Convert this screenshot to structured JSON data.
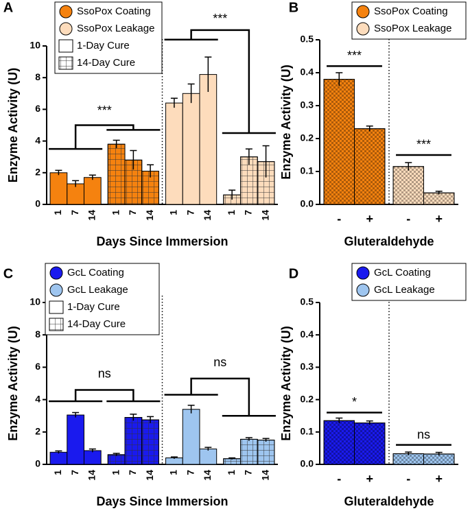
{
  "chart_data": [
    {
      "type": "bar",
      "panel": "A",
      "ylabel": "Enzyme Activity (U)",
      "xlabel": "Days Since Immersion",
      "categories": [
        "1",
        "7",
        "14"
      ],
      "ylim": [
        0,
        10
      ],
      "yticks": [
        0,
        2,
        4,
        6,
        8,
        10
      ],
      "groups": [
        {
          "color": "#f5820f",
          "pattern": "none",
          "values": [
            2.0,
            1.3,
            1.7
          ],
          "errors": [
            0.15,
            0.2,
            0.15
          ]
        },
        {
          "color": "#f5820f",
          "pattern": "grid",
          "values": [
            3.8,
            2.8,
            2.1
          ],
          "errors": [
            0.25,
            0.6,
            0.4
          ]
        },
        {
          "color": "#fddcbc",
          "pattern": "none",
          "values": [
            6.4,
            7.0,
            8.2
          ],
          "errors": [
            0.3,
            0.6,
            1.1
          ]
        },
        {
          "color": "#fddcbc",
          "pattern": "grid",
          "values": [
            0.6,
            3.0,
            2.7
          ],
          "errors": [
            0.3,
            0.5,
            1.0
          ]
        }
      ],
      "legend": [
        {
          "label": "SsoPox Coating",
          "marker": "circle",
          "color": "#f5820f",
          "pattern": "none"
        },
        {
          "label": "SsoPox Leakage",
          "marker": "circle",
          "color": "#fddcbc",
          "pattern": "none"
        },
        {
          "label": "1-Day Cure",
          "marker": "square",
          "color": "#ffffff",
          "pattern": "none"
        },
        {
          "label": "14-Day Cure",
          "marker": "square",
          "color": "#ffffff",
          "pattern": "grid"
        }
      ],
      "annotations": [
        "***",
        "***"
      ]
    },
    {
      "type": "bar",
      "panel": "B",
      "ylabel": "Enzyme Activity (U)",
      "xlabel": "Gluteraldehyde",
      "categories": [
        "-",
        "+"
      ],
      "ylim": [
        0,
        0.5
      ],
      "yticks": [
        {
          "value": 0,
          "label": "0.0"
        },
        0.1,
        0.2,
        0.3,
        0.4,
        0.5
      ],
      "groups": [
        {
          "color": "#f5820f",
          "pattern": "check",
          "values": [
            0.38,
            0.23
          ],
          "errors": [
            0.02,
            0.008
          ]
        },
        {
          "color": "#fddcbc",
          "pattern": "check",
          "values": [
            0.115,
            0.035
          ],
          "errors": [
            0.012,
            0.005
          ]
        }
      ],
      "legend": [
        {
          "label": "SsoPox Coating",
          "marker": "circle",
          "color": "#f5820f",
          "pattern": "none"
        },
        {
          "label": "SsoPox Leakage",
          "marker": "circle",
          "color": "#fddcbc",
          "pattern": "none"
        }
      ],
      "annotations": [
        "***",
        "***"
      ]
    },
    {
      "type": "bar",
      "panel": "C",
      "ylabel": "Enzyme Activity (U)",
      "xlabel": "Days Since Immersion",
      "categories": [
        "1",
        "7",
        "14"
      ],
      "ylim": [
        0,
        10
      ],
      "yticks": [
        0,
        2,
        4,
        6,
        8,
        10
      ],
      "groups": [
        {
          "color": "#1a1aee",
          "pattern": "none",
          "values": [
            0.75,
            3.05,
            0.85
          ],
          "errors": [
            0.08,
            0.15,
            0.1
          ]
        },
        {
          "color": "#1a1aee",
          "pattern": "grid",
          "values": [
            0.6,
            2.9,
            2.75
          ],
          "errors": [
            0.08,
            0.2,
            0.2
          ]
        },
        {
          "color": "#9ec5ef",
          "pattern": "none",
          "values": [
            0.4,
            3.4,
            0.95
          ],
          "errors": [
            0.06,
            0.25,
            0.1
          ]
        },
        {
          "color": "#9ec5ef",
          "pattern": "grid",
          "values": [
            0.35,
            1.55,
            1.5
          ],
          "errors": [
            0.05,
            0.1,
            0.1
          ]
        }
      ],
      "legend": [
        {
          "label": "GcL Coating",
          "marker": "circle",
          "color": "#1a1aee",
          "pattern": "none"
        },
        {
          "label": "GcL Leakage",
          "marker": "circle",
          "color": "#9ec5ef",
          "pattern": "none"
        },
        {
          "label": "1-Day Cure",
          "marker": "square",
          "color": "#ffffff",
          "pattern": "none"
        },
        {
          "label": "14-Day Cure",
          "marker": "square",
          "color": "#ffffff",
          "pattern": "grid"
        }
      ],
      "annotations": [
        "ns",
        "ns"
      ]
    },
    {
      "type": "bar",
      "panel": "D",
      "ylabel": "Enzyme Activity (U)",
      "xlabel": "Gluteraldehyde",
      "categories": [
        "-",
        "+"
      ],
      "ylim": [
        0,
        0.5
      ],
      "yticks": [
        {
          "value": 0,
          "label": "0.0"
        },
        0.1,
        0.2,
        0.3,
        0.4,
        0.5
      ],
      "groups": [
        {
          "color": "#1a1aee",
          "pattern": "check",
          "values": [
            0.135,
            0.128
          ],
          "errors": [
            0.008,
            0.006
          ]
        },
        {
          "color": "#9ec5ef",
          "pattern": "check",
          "values": [
            0.033,
            0.032
          ],
          "errors": [
            0.005,
            0.005
          ]
        }
      ],
      "legend": [
        {
          "label": "GcL Coating",
          "marker": "circle",
          "color": "#1a1aee",
          "pattern": "none"
        },
        {
          "label": "GcL Leakage",
          "marker": "circle",
          "color": "#9ec5ef",
          "pattern": "none"
        }
      ],
      "annotations": [
        "*",
        "ns"
      ]
    }
  ]
}
